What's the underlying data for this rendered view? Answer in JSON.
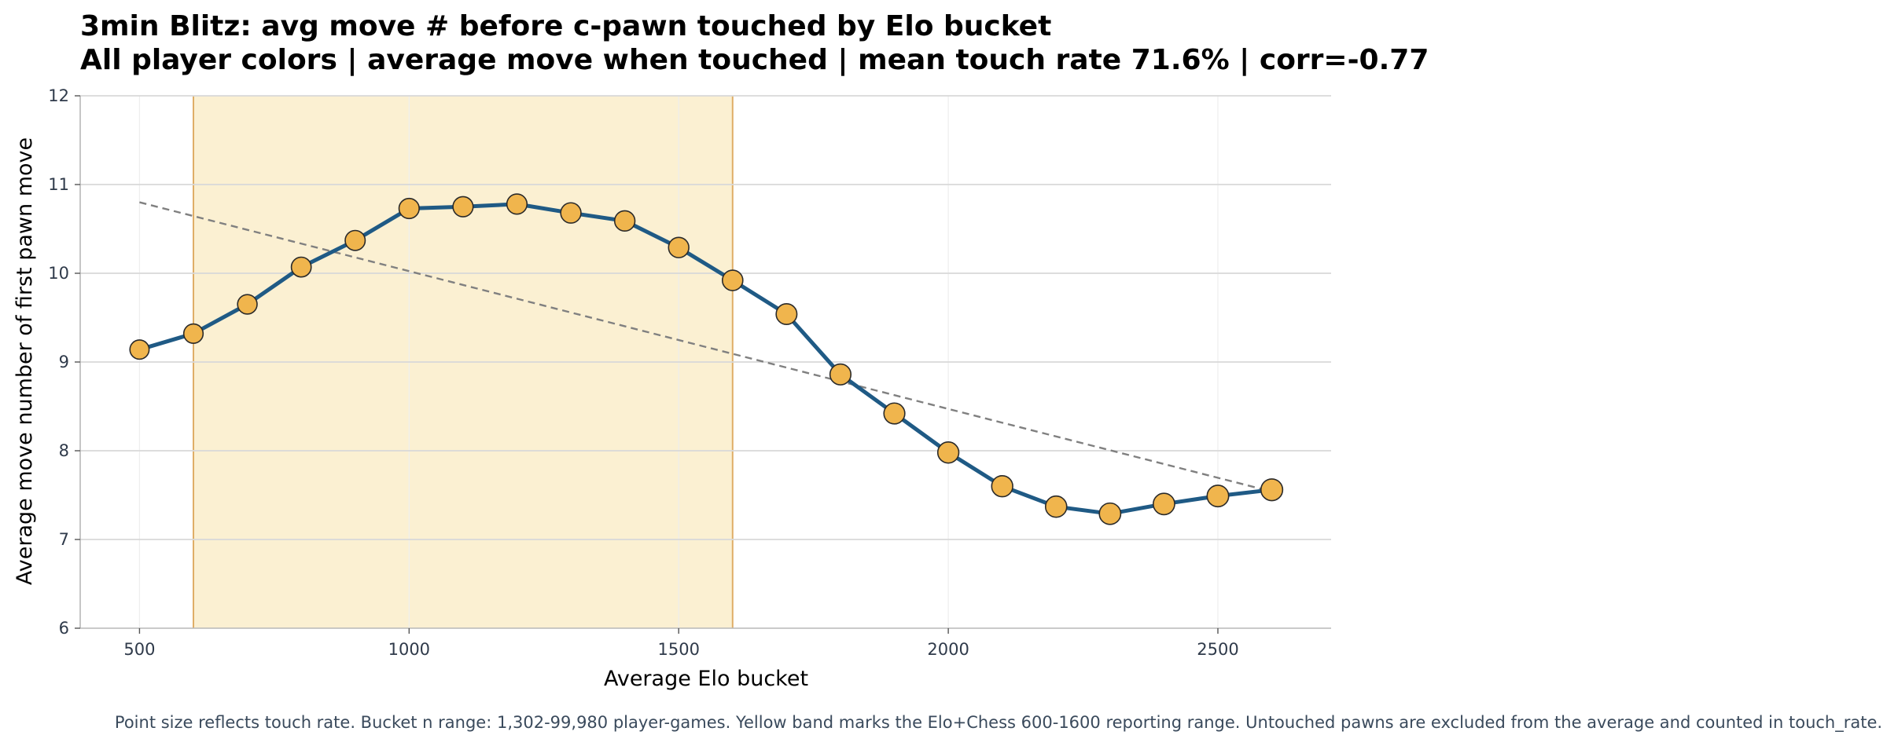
{
  "chart_data": {
    "type": "line",
    "title": "3min Blitz: avg move # before c-pawn touched by Elo bucket",
    "subtitle": "All player colors | average move when touched | mean touch rate 71.6% | corr=-0.77",
    "xlabel": "Average Elo bucket",
    "ylabel": "Average move number of first pawn move",
    "xlim": [
      390,
      2710
    ],
    "ylim": [
      6,
      12
    ],
    "x_ticks": [
      500,
      1000,
      1500,
      2000,
      2500
    ],
    "y_ticks": [
      6,
      7,
      8,
      9,
      10,
      11,
      12
    ],
    "grid": true,
    "band": {
      "x_start": 600,
      "x_end": 1600,
      "label": "Elo+Chess 600-1600 reporting range"
    },
    "series": [
      {
        "x": [
          500,
          600,
          700,
          800,
          900,
          1000,
          1100,
          1200,
          1300,
          1400,
          1500,
          1600,
          1700,
          1800,
          1900,
          2000,
          2100,
          2200,
          2300,
          2400,
          2500,
          2600
        ],
        "values": [
          9.14,
          9.32,
          9.65,
          10.07,
          10.37,
          10.73,
          10.75,
          10.78,
          10.68,
          10.59,
          10.29,
          9.92,
          9.54,
          8.86,
          8.42,
          7.98,
          7.6,
          7.37,
          7.29,
          7.4,
          7.49,
          7.56
        ],
        "touch_rate_rel": [
          0.7,
          0.72,
          0.74,
          0.76,
          0.78,
          0.8,
          0.8,
          0.8,
          0.81,
          0.81,
          0.82,
          0.84,
          0.86,
          0.88,
          0.88,
          0.9,
          0.9,
          0.92,
          0.94,
          0.94,
          0.95,
          0.97
        ]
      }
    ],
    "trendline": {
      "x": [
        500,
        2600
      ],
      "values": [
        10.8,
        7.54
      ]
    },
    "colors": {
      "line": "#1f5a85",
      "marker": "#f0b54d",
      "marker_edge": "#2a2a2a",
      "band_fill": "#fbf0d2",
      "band_edge": "#dfae67",
      "trend": "#808080",
      "grid": "#d8d8d8",
      "tick_text": "#2f3a4a"
    }
  },
  "footnote": "Point size reflects touch rate. Bucket n range: 1,302-99,980 player-games. Yellow band marks the Elo+Chess 600-1600 reporting range. Untouched pawns are excluded from the average and counted in touch_rate."
}
